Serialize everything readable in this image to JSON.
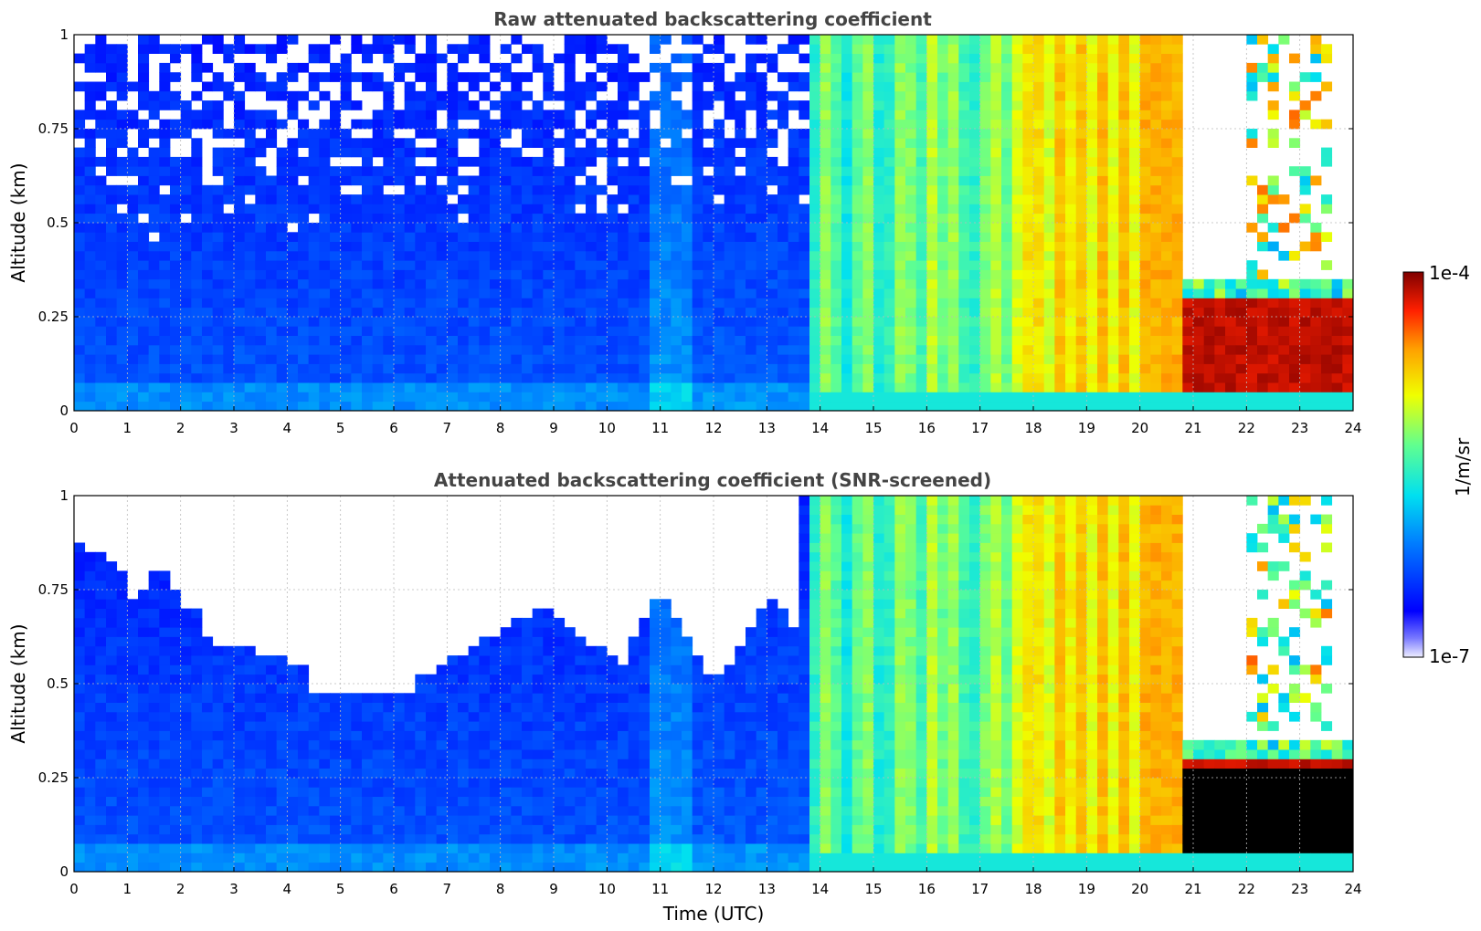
{
  "chart_data": [
    {
      "type": "heatmap",
      "title": "Raw attenuated backscattering coefficient",
      "xlabel": "",
      "ylabel": "Altitude (km)",
      "xlim": [
        0,
        24
      ],
      "ylim": [
        0,
        1
      ],
      "x_ticks": [
        "0",
        "1",
        "2",
        "3",
        "4",
        "5",
        "6",
        "7",
        "8",
        "9",
        "10",
        "11",
        "12",
        "13",
        "14",
        "15",
        "16",
        "17",
        "18",
        "19",
        "20",
        "21",
        "22",
        "23",
        "24"
      ],
      "y_ticks": [
        "0",
        "0.25",
        "0.5",
        "0.75",
        "1"
      ],
      "grid": true,
      "screened": false
    },
    {
      "type": "heatmap",
      "title": "Attenuated backscattering coefficient (SNR-screened)",
      "xlabel": "Time (UTC)",
      "ylabel": "Altitude (km)",
      "xlim": [
        0,
        24
      ],
      "ylim": [
        0,
        1
      ],
      "x_ticks": [
        "0",
        "1",
        "2",
        "3",
        "4",
        "5",
        "6",
        "7",
        "8",
        "9",
        "10",
        "11",
        "12",
        "13",
        "14",
        "15",
        "16",
        "17",
        "18",
        "19",
        "20",
        "21",
        "22",
        "23",
        "24"
      ],
      "y_ticks": [
        "0",
        "0.25",
        "0.5",
        "0.75",
        "1"
      ],
      "grid": true,
      "screened": true
    }
  ],
  "colorbar": {
    "label": "1/m/sr",
    "max_label": "1e-4",
    "min_label": "1e-7",
    "scale": "log",
    "range": [
      1e-07,
      0.0001
    ]
  },
  "colors": {
    "background": "#ffffff",
    "title": "#444444",
    "grid": "#bbbbbb"
  }
}
